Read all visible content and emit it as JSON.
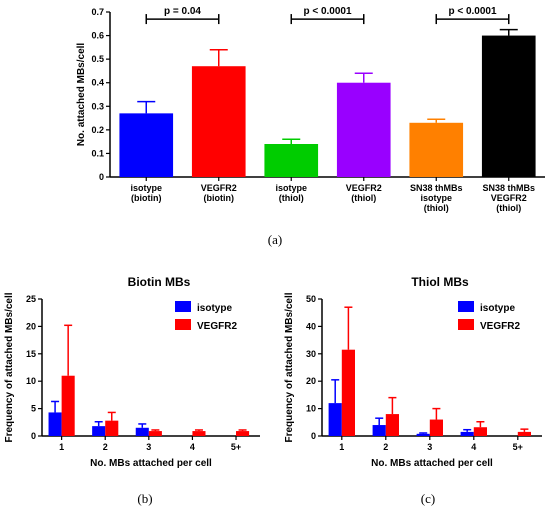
{
  "chart_data": [
    {
      "type": "bar",
      "panel": "(a)",
      "ylabel": "No. attached MBs/cell",
      "ylim": [
        0,
        0.7
      ],
      "yticks": [
        0,
        0.1,
        0.2,
        0.3,
        0.4,
        0.5,
        0.6,
        0.7
      ],
      "grid": false,
      "categories": [
        [
          "isotype",
          "(biotin)"
        ],
        [
          "VEGFR2",
          "(biotin)"
        ],
        [
          "isotype",
          "(thiol)"
        ],
        [
          "VEGFR2",
          "(thiol)"
        ],
        [
          "SN38 thMBs",
          "isotype",
          "(thiol)"
        ],
        [
          "SN38 thMBs",
          "VEGFR2",
          "(thiol)"
        ]
      ],
      "values": [
        0.27,
        0.47,
        0.14,
        0.4,
        0.23,
        0.6
      ],
      "errors": [
        0.05,
        0.07,
        0.02,
        0.04,
        0.015,
        0.025
      ],
      "colors": [
        "#0000ff",
        "#ff0000",
        "#00cc00",
        "#9900ff",
        "#ff8000",
        "#000000"
      ],
      "annotations": [
        {
          "from": 0,
          "to": 1,
          "text": "p = 0.04"
        },
        {
          "from": 2,
          "to": 3,
          "text": "p < 0.0001"
        },
        {
          "from": 4,
          "to": 5,
          "text": "p < 0.0001"
        }
      ]
    },
    {
      "type": "bar",
      "panel": "(b)",
      "title": "Biotin MBs",
      "xlabel": "No. MBs attached per cell",
      "ylabel": "Frequency of attached MBs/cell",
      "ylim": [
        0,
        25
      ],
      "yticks": [
        0,
        5,
        10,
        15,
        20,
        25
      ],
      "grid": false,
      "legend_position": "top-right",
      "categories": [
        "1",
        "2",
        "3",
        "4",
        "5+"
      ],
      "series": [
        {
          "name": "isotype",
          "color": "#0000ff",
          "values": [
            4.3,
            1.8,
            1.5,
            0,
            0
          ],
          "errors": [
            2.0,
            0.8,
            0.7,
            0,
            0
          ]
        },
        {
          "name": "VEGFR2",
          "color": "#ff0000",
          "values": [
            11.0,
            2.8,
            0.9,
            0.9,
            0.9
          ],
          "errors": [
            9.2,
            1.5,
            0.2,
            0.2,
            0.2
          ]
        }
      ]
    },
    {
      "type": "bar",
      "panel": "(c)",
      "title": "Thiol MBs",
      "xlabel": "No. MBs attached per cell",
      "ylabel": "Frequency of attached MBs/cell",
      "ylim": [
        0,
        50
      ],
      "yticks": [
        0,
        10,
        20,
        30,
        40,
        50
      ],
      "grid": false,
      "legend_position": "top-right",
      "categories": [
        "1",
        "2",
        "3",
        "4",
        "5+"
      ],
      "series": [
        {
          "name": "isotype",
          "color": "#0000ff",
          "values": [
            12.0,
            4.0,
            0.8,
            1.5,
            0
          ],
          "errors": [
            8.5,
            2.5,
            0.3,
            0.8,
            0
          ]
        },
        {
          "name": "VEGFR2",
          "color": "#ff0000",
          "values": [
            31.5,
            8.0,
            6.0,
            3.2,
            1.5
          ],
          "errors": [
            15.5,
            6.0,
            4.0,
            2.0,
            1.0
          ]
        }
      ]
    }
  ]
}
